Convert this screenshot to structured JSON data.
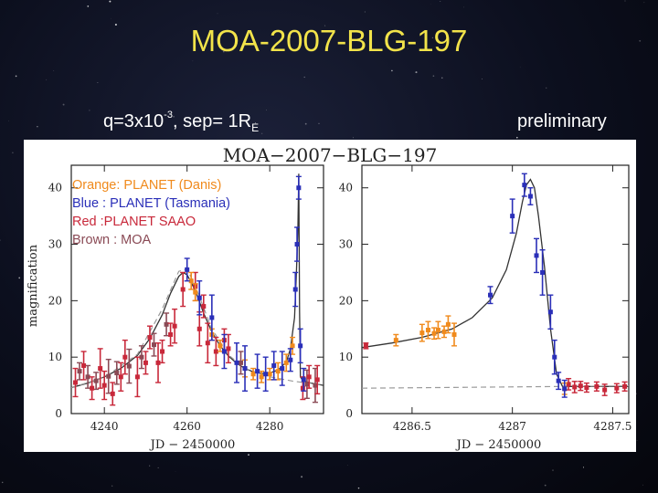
{
  "slide": {
    "title": "MOA-2007-BLG-197",
    "params_q": "q=3x10",
    "params_q_exp": "-3",
    "params_sep": ",   sep= 1R",
    "params_sep_sub": "E",
    "status": "preliminary"
  },
  "colors": {
    "title": "#f2e34a",
    "orange": "#f08a1c",
    "blue": "#2a2fb8",
    "red": "#c8283a",
    "brown": "#8a4a55"
  },
  "chart_data": [
    {
      "type": "scatter",
      "title": "MOA−2007−BLG−197",
      "xlabel": "JD − 2450000",
      "ylabel": "magnification",
      "xlim": [
        4232,
        4293
      ],
      "ylim": [
        0,
        44
      ],
      "x_ticks": [
        4240,
        4260,
        4280
      ],
      "y_ticks": [
        0,
        10,
        20,
        30,
        40
      ],
      "legend": {
        "placement": "top-left",
        "entries": [
          {
            "label": "Orange: PLANET (Danis)",
            "color": "#f08a1c"
          },
          {
            "label": "Blue   : PLANET (Tasmania)",
            "color": "#2a2fb8"
          },
          {
            "label": "Red     :PLANET SAAO",
            "color": "#c8283a"
          },
          {
            "label": "Brown : MOA",
            "color": "#8a4a55"
          }
        ]
      },
      "models": [
        {
          "style": "solid",
          "points": [
            [
              4232,
              4.6
            ],
            [
              4236,
              5.4
            ],
            [
              4240,
              6.5
            ],
            [
              4244,
              8.0
            ],
            [
              4248,
              10.3
            ],
            [
              4251,
              13.3
            ],
            [
              4254,
              17.5
            ],
            [
              4256,
              21.3
            ],
            [
              4258,
              24.3
            ],
            [
              4259,
              25.0
            ],
            [
              4260,
              24.6
            ],
            [
              4262,
              21.8
            ],
            [
              4264,
              17.8
            ],
            [
              4266,
              14.5
            ],
            [
              4268,
              12.0
            ],
            [
              4270,
              10.2
            ],
            [
              4272,
              8.9
            ],
            [
              4274,
              8.0
            ],
            [
              4276,
              7.4
            ],
            [
              4278,
              7.1
            ],
            [
              4280,
              7.2
            ],
            [
              4282,
              7.7
            ],
            [
              4284,
              9.1
            ],
            [
              4285,
              11.5
            ],
            [
              4286,
              17.0
            ],
            [
              4286.4,
              24.0
            ],
            [
              4286.8,
              32.0
            ],
            [
              4287.0,
              42.5
            ],
            [
              4287.2,
              18.0
            ],
            [
              4287.4,
              6.5
            ],
            [
              4288,
              5.8
            ],
            [
              4290,
              5.4
            ],
            [
              4293,
              5.0
            ]
          ]
        },
        {
          "style": "dashed",
          "points": [
            [
              4232,
              4.6
            ],
            [
              4240,
              6.4
            ],
            [
              4248,
              10.5
            ],
            [
              4254,
              18.5
            ],
            [
              4258,
              25.2
            ],
            [
              4260,
              25.6
            ],
            [
              4262,
              22.6
            ],
            [
              4266,
              15.0
            ],
            [
              4270,
              10.4
            ],
            [
              4274,
              8.0
            ],
            [
              4280,
              6.5
            ],
            [
              4286,
              5.7
            ],
            [
              4293,
              5.1
            ]
          ]
        }
      ],
      "series": [
        {
          "name": "Brown : MOA",
          "color": "#8a4a55",
          "points": [
            [
              4234,
              7.5,
              1.5
            ],
            [
              4236,
              6.5,
              2.0
            ],
            [
              4238,
              5.8,
              1.5
            ],
            [
              4241,
              6.6,
              3.0
            ],
            [
              4243,
              7.2,
              2.0
            ],
            [
              4246,
              8.4,
              3.0
            ],
            [
              4249,
              10.0,
              2.0
            ],
            [
              4252,
              12.2,
              2.0
            ],
            [
              4255,
              15.8,
              2.0
            ],
            [
              4273,
              9.0,
              2.0
            ],
            [
              4289,
              5.2,
              2.5
            ],
            [
              4291,
              5.0,
              3.0
            ]
          ]
        },
        {
          "name": "Red     :PLANET SAAO",
          "color": "#c8283a",
          "points": [
            [
              4233,
              5.5,
              2.5
            ],
            [
              4235,
              8.5,
              2.5
            ],
            [
              4237,
              4.5,
              2.0
            ],
            [
              4239,
              8.0,
              3.5
            ],
            [
              4240,
              5.0,
              2.5
            ],
            [
              4242,
              3.5,
              2.0
            ],
            [
              4244,
              6.5,
              2.5
            ],
            [
              4245,
              10.0,
              3.0
            ],
            [
              4248,
              6.5,
              3.5
            ],
            [
              4250,
              9.0,
              2.0
            ],
            [
              4251,
              13.5,
              2.0
            ],
            [
              4253,
              9.0,
              3.5
            ],
            [
              4254,
              11.0,
              2.0
            ],
            [
              4256,
              14.0,
              2.0
            ],
            [
              4257,
              15.5,
              3.0
            ],
            [
              4259,
              22.0,
              3.0
            ],
            [
              4262,
              22.5,
              2.5
            ],
            [
              4263,
              15.0,
              3.0
            ],
            [
              4264,
              19.0,
              2.0
            ],
            [
              4265,
              12.5,
              3.5
            ],
            [
              4267,
              11.0,
              2.5
            ],
            [
              4269,
              13.0,
              2.0
            ],
            [
              4270,
              11.5,
              2.5
            ],
            [
              4288,
              4.5,
              2.0
            ],
            [
              4289.5,
              6.5,
              2.0
            ],
            [
              4291.5,
              6.0,
              2.5
            ]
          ]
        },
        {
          "name": "Orange: PLANET (Danis)",
          "color": "#f08a1c",
          "points": [
            [
              4261,
              23.5,
              1.5
            ],
            [
              4262,
              21.5,
              1.5
            ],
            [
              4266,
              14.0,
              1.0
            ],
            [
              4268,
              12.0,
              1.0
            ],
            [
              4274,
              8.0,
              1.5
            ],
            [
              4276,
              7.0,
              1.0
            ],
            [
              4278,
              6.5,
              1.0
            ],
            [
              4280,
              7.0,
              1.0
            ],
            [
              4282,
              7.5,
              1.5
            ],
            [
              4284,
              9.0,
              1.5
            ],
            [
              4285.5,
              12.0,
              1.5
            ]
          ]
        },
        {
          "name": "Blue   : PLANET (Tasmania)",
          "color": "#2a2fb8",
          "points": [
            [
              4260,
              25.5,
              2.0
            ],
            [
              4263,
              20.5,
              3.0
            ],
            [
              4266,
              17.0,
              4.0
            ],
            [
              4269,
              11.0,
              3.0
            ],
            [
              4272,
              9.0,
              3.5
            ],
            [
              4274,
              8.0,
              4.0
            ],
            [
              4277,
              7.5,
              3.0
            ],
            [
              4279,
              7.0,
              3.0
            ],
            [
              4281,
              8.5,
              2.5
            ],
            [
              4283,
              8.0,
              3.0
            ],
            [
              4285,
              9.5,
              2.0
            ],
            [
              4286.2,
              22.0,
              3.0
            ],
            [
              4286.6,
              30.0,
              3.0
            ],
            [
              4287.0,
              40.0,
              2.0
            ],
            [
              4287.4,
              12.0,
              3.0
            ],
            [
              4288.2,
              6.0,
              2.0
            ]
          ]
        }
      ]
    },
    {
      "type": "scatter",
      "xlabel": "JD − 2450000",
      "xlim": [
        4286.25,
        4287.58
      ],
      "ylim": [
        0,
        44
      ],
      "x_ticks": [
        4286.5,
        4287,
        4287.5
      ],
      "y_ticks": [
        0,
        10,
        20,
        30,
        40
      ],
      "models": [
        {
          "style": "solid",
          "points": [
            [
              4286.25,
              11.7
            ],
            [
              4286.4,
              12.5
            ],
            [
              4286.55,
              13.5
            ],
            [
              4286.7,
              15.0
            ],
            [
              4286.8,
              17.0
            ],
            [
              4286.9,
              20.5
            ],
            [
              4286.97,
              25.5
            ],
            [
              4287.02,
              32.0
            ],
            [
              4287.05,
              37.5
            ],
            [
              4287.07,
              40.5
            ],
            [
              4287.09,
              41.5
            ],
            [
              4287.11,
              40.0
            ],
            [
              4287.13,
              35.0
            ],
            [
              4287.16,
              26.0
            ],
            [
              4287.19,
              15.0
            ],
            [
              4287.22,
              7.0
            ],
            [
              4287.25,
              4.8
            ],
            [
              4287.35,
              4.8
            ],
            [
              4287.58,
              4.8
            ]
          ]
        },
        {
          "style": "dashed",
          "points": [
            [
              4286.25,
              4.5
            ],
            [
              4287.58,
              4.9
            ]
          ]
        }
      ],
      "series": [
        {
          "name": "Red     :PLANET SAAO",
          "color": "#c8283a",
          "points": [
            [
              4286.27,
              12.0,
              0.5
            ],
            [
              4287.28,
              5.2,
              1.0
            ],
            [
              4287.31,
              4.7,
              1.0
            ],
            [
              4287.34,
              4.9,
              0.8
            ],
            [
              4287.37,
              4.6,
              0.8
            ],
            [
              4287.42,
              4.8,
              0.8
            ],
            [
              4287.46,
              4.2,
              1.0
            ],
            [
              4287.52,
              4.5,
              0.8
            ],
            [
              4287.56,
              4.8,
              0.8
            ]
          ]
        },
        {
          "name": "Orange: PLANET (Danis)",
          "color": "#f08a1c",
          "points": [
            [
              4286.42,
              13.0,
              1.0
            ],
            [
              4286.55,
              14.3,
              1.5
            ],
            [
              4286.58,
              14.8,
              1.5
            ],
            [
              4286.61,
              14.2,
              1.0
            ],
            [
              4286.63,
              14.8,
              1.5
            ],
            [
              4286.66,
              14.5,
              1.0
            ],
            [
              4286.68,
              15.8,
              1.5
            ],
            [
              4286.71,
              14.0,
              2.0
            ],
            [
              4287.26,
              4.4,
              1.0
            ]
          ]
        },
        {
          "name": "Blue   : PLANET (Tasmania)",
          "color": "#2a2fb8",
          "points": [
            [
              4286.89,
              21.0,
              1.5
            ],
            [
              4287.0,
              35.0,
              3.0
            ],
            [
              4287.06,
              40.5,
              2.0
            ],
            [
              4287.09,
              38.5,
              1.5
            ],
            [
              4287.12,
              28.0,
              3.0
            ],
            [
              4287.15,
              25.0,
              4.0
            ],
            [
              4287.19,
              18.0,
              3.0
            ],
            [
              4287.21,
              10.0,
              3.0
            ],
            [
              4287.23,
              5.8,
              1.5
            ],
            [
              4287.26,
              4.4,
              1.5
            ]
          ]
        }
      ]
    }
  ]
}
